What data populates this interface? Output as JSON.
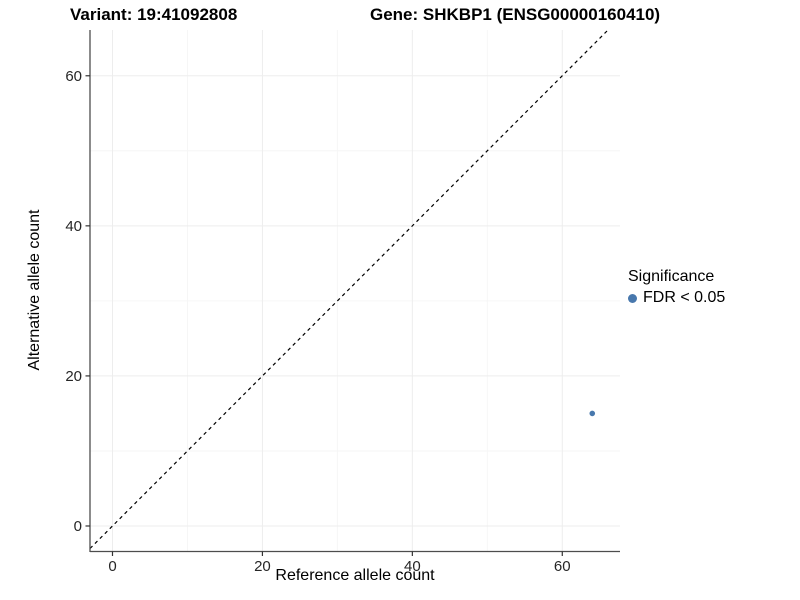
{
  "header": {
    "variant_title": "Variant: 19:41092808",
    "gene_title": "Gene: SHKBP1 (ENSG00000160410)"
  },
  "legend": {
    "title": "Significance",
    "entries": [
      {
        "label": "FDR < 0.05",
        "color": "#4878ad"
      }
    ]
  },
  "chart_data": {
    "type": "scatter",
    "title": "",
    "xlabel": "Reference allele count",
    "ylabel": "Alternative allele count",
    "x_ticks": [
      0,
      20,
      40,
      60
    ],
    "y_ticks": [
      0,
      20,
      40,
      60
    ],
    "x_minor_gridlines": [
      10,
      30,
      50
    ],
    "y_minor_gridlines": [
      10,
      30,
      50
    ],
    "xlim": [
      -3.0,
      67.7
    ],
    "ylim": [
      -3.4,
      66.1
    ],
    "grid": true,
    "legend_position": "right",
    "series": [
      {
        "name": "FDR < 0.05",
        "color": "#4878ad",
        "points": [
          {
            "x": 64,
            "y": 15
          }
        ]
      }
    ],
    "reference_line": {
      "slope": 1,
      "intercept": 0,
      "style": "dashed",
      "color": "#000000"
    }
  },
  "colors": {
    "point_blue": "#4878ad",
    "grid_major": "#ededed",
    "grid_minor": "#f6f6f6",
    "axis_line": "#4d4d4d",
    "tick_mark": "#333333",
    "tick_text": "#262626",
    "title_text": "#000000",
    "background": "#ffffff"
  }
}
